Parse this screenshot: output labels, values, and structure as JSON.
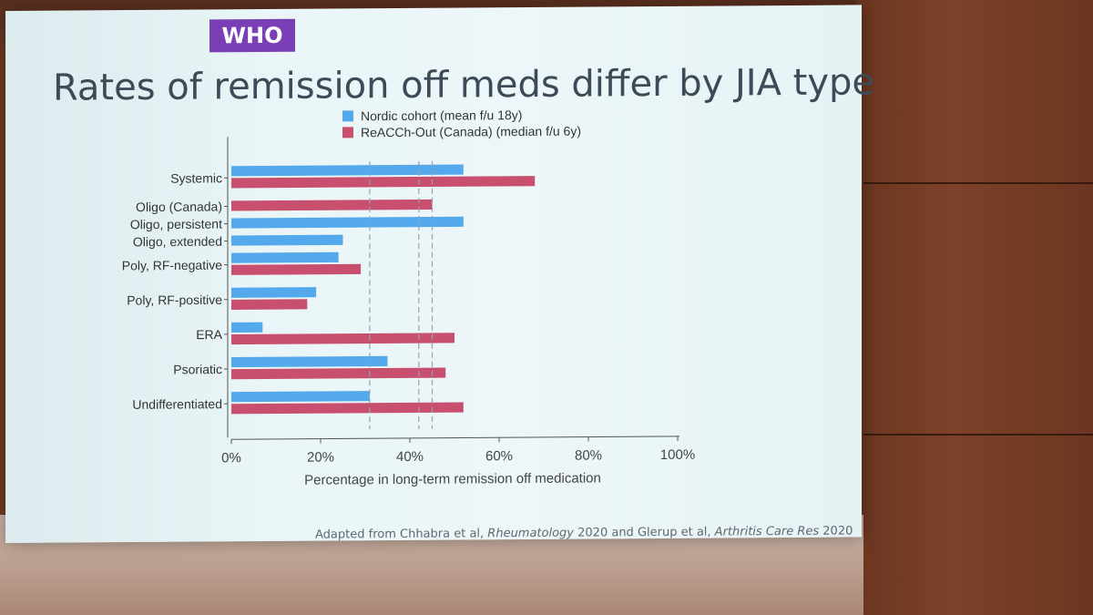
{
  "header": {
    "badge": "WHO",
    "title": "Rates of remission off meds differ by JIA type"
  },
  "footer": {
    "credit_prefix": "Adapted from Chhabra et al, ",
    "journal1": "Rheumatology",
    "mid": " 2020 and Glerup et al, ",
    "journal2": "Arthritis Care Res",
    "suffix": " 2020"
  },
  "colors": {
    "nordic": "#54a9ec",
    "reacch": "#c8506e",
    "axis": "#555555",
    "refline": "#8fa3b0"
  },
  "chart_data": {
    "type": "bar",
    "orientation": "horizontal",
    "title": "",
    "xlabel": "Percentage in long-term remission off medication",
    "ylabel": "",
    "xlim": [
      0,
      100
    ],
    "xticks": [
      "0%",
      "20%",
      "40%",
      "60%",
      "80%",
      "100%"
    ],
    "xtick_values": [
      0,
      20,
      40,
      60,
      80,
      100
    ],
    "categories": [
      "Systemic",
      "Oligo (Canada)",
      "Oligo, persistent",
      "Oligo, extended",
      "Poly, RF-negative",
      "Poly, RF-positive",
      "ERA",
      "Psoriatic",
      "Undifferentiated"
    ],
    "series": [
      {
        "name": "Nordic cohort (mean f/u 18y)",
        "values": [
          52,
          null,
          52,
          25,
          24,
          19,
          7,
          35,
          31
        ]
      },
      {
        "name": "ReACCh-Out (Canada) (median f/u 6y)",
        "values": [
          68,
          45,
          null,
          null,
          29,
          17,
          50,
          48,
          52
        ]
      }
    ],
    "reference_lines": [
      31,
      42,
      45
    ],
    "legend_position": "top"
  }
}
